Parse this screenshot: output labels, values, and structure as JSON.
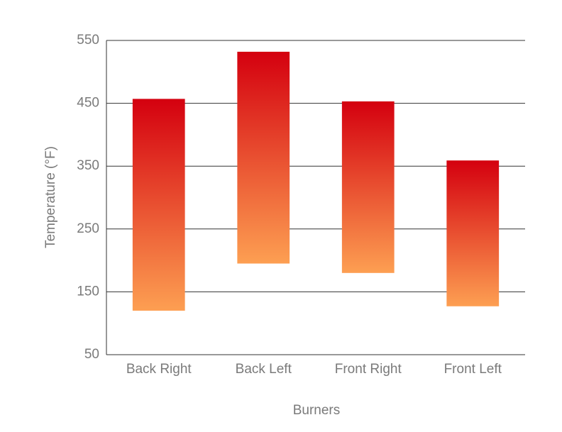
{
  "chart_data": {
    "type": "floating-bar",
    "x_label": "Burners",
    "y_label": "Temperature (°F)",
    "categories": [
      "Back Right",
      "Back Left",
      "Front Right",
      "Front Left"
    ],
    "low": [
      120,
      195,
      180,
      127
    ],
    "high": [
      457,
      532,
      453,
      359
    ],
    "colors": [
      "#d4000f",
      "#fd9f52"
    ],
    "ylim": [
      50,
      550
    ],
    "yticks": [
      50,
      150,
      250,
      350,
      450,
      550
    ],
    "grid": true
  }
}
